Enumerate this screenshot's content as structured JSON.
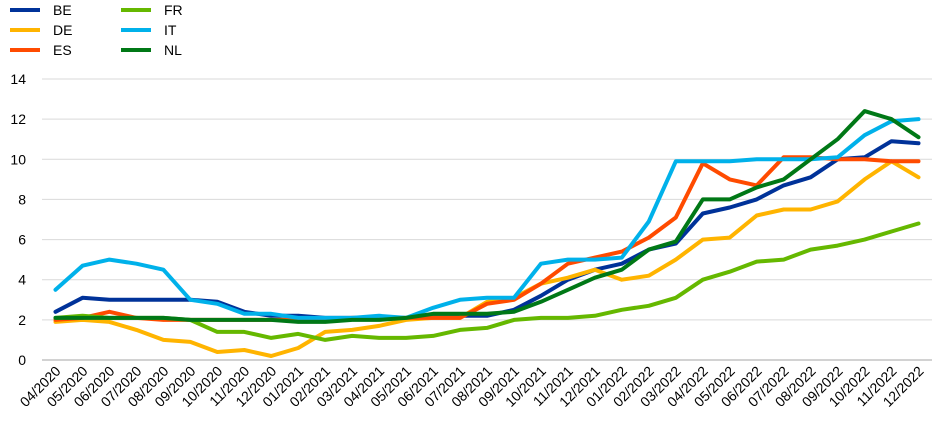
{
  "chart_data": {
    "type": "line",
    "title": "",
    "xlabel": "",
    "ylabel": "",
    "ylim": [
      0,
      14
    ],
    "yticks": [
      0,
      2,
      4,
      6,
      8,
      10,
      12,
      14
    ],
    "grid": "horizontal",
    "legend_position": "top-left",
    "categories": [
      "04/2020",
      "05/2020",
      "06/2020",
      "07/2020",
      "08/2020",
      "09/2020",
      "10/2020",
      "11/2020",
      "12/2020",
      "01/2021",
      "02/2021",
      "03/2021",
      "04/2021",
      "05/2021",
      "06/2021",
      "07/2021",
      "08/2021",
      "09/2021",
      "10/2021",
      "11/2021",
      "12/2021",
      "01/2022",
      "02/2022",
      "03/2022",
      "04/2022",
      "05/2022",
      "06/2022",
      "07/2022",
      "08/2022",
      "09/2022",
      "10/2022",
      "11/2022",
      "12/2022"
    ],
    "series": [
      {
        "name": "BE",
        "color": "#003299",
        "values": [
          2.4,
          3.1,
          3.0,
          3.0,
          3.0,
          3.0,
          2.9,
          2.4,
          2.2,
          2.2,
          2.1,
          2.1,
          2.1,
          2.1,
          2.2,
          2.2,
          2.2,
          2.5,
          3.2,
          4.0,
          4.5,
          4.8,
          5.5,
          5.8,
          7.3,
          7.6,
          8.0,
          8.7,
          9.1,
          10.0,
          10.1,
          10.9,
          10.8
        ]
      },
      {
        "name": "DE",
        "color": "#FFB400",
        "values": [
          1.9,
          2.0,
          1.9,
          1.5,
          1.0,
          0.9,
          0.4,
          0.5,
          0.2,
          0.6,
          1.4,
          1.5,
          1.7,
          2.0,
          2.1,
          2.1,
          2.9,
          3.1,
          3.8,
          4.1,
          4.5,
          4.0,
          4.2,
          5.0,
          6.0,
          6.1,
          7.2,
          7.5,
          7.5,
          7.9,
          9.0,
          9.9,
          9.1
        ]
      },
      {
        "name": "ES",
        "color": "#FF4B00",
        "values": [
          2.0,
          2.1,
          2.4,
          2.1,
          2.0,
          2.0,
          2.0,
          2.0,
          2.0,
          2.0,
          2.0,
          2.1,
          2.1,
          2.1,
          2.1,
          2.1,
          2.8,
          3.0,
          3.8,
          4.8,
          5.1,
          5.4,
          6.1,
          7.1,
          9.8,
          9.0,
          8.7,
          10.1,
          10.1,
          10.0,
          10.0,
          9.9,
          9.9
        ]
      },
      {
        "name": "FR",
        "color": "#65B800",
        "values": [
          2.1,
          2.2,
          2.1,
          2.1,
          2.1,
          2.0,
          1.4,
          1.4,
          1.1,
          1.3,
          1.0,
          1.2,
          1.1,
          1.1,
          1.2,
          1.5,
          1.6,
          2.0,
          2.1,
          2.1,
          2.2,
          2.5,
          2.7,
          3.1,
          4.0,
          4.4,
          4.9,
          5.0,
          5.5,
          5.7,
          6.0,
          6.4,
          6.8
        ]
      },
      {
        "name": "IT",
        "color": "#00B1EA",
        "values": [
          3.5,
          4.7,
          5.0,
          4.8,
          4.5,
          3.0,
          2.8,
          2.3,
          2.3,
          2.1,
          2.1,
          2.1,
          2.2,
          2.1,
          2.6,
          3.0,
          3.1,
          3.1,
          4.8,
          5.0,
          5.0,
          5.1,
          6.9,
          9.9,
          9.9,
          9.9,
          10.0,
          10.0,
          10.0,
          10.1,
          11.2,
          11.9,
          12.0
        ]
      },
      {
        "name": "NL",
        "color": "#007816",
        "values": [
          2.1,
          2.1,
          2.1,
          2.1,
          2.1,
          2.0,
          2.0,
          2.0,
          2.0,
          1.9,
          1.9,
          2.0,
          2.0,
          2.1,
          2.3,
          2.3,
          2.3,
          2.4,
          2.9,
          3.5,
          4.1,
          4.5,
          5.5,
          5.9,
          8.0,
          8.0,
          8.6,
          9.0,
          10.0,
          11.0,
          12.4,
          12.0,
          11.1
        ]
      }
    ]
  }
}
